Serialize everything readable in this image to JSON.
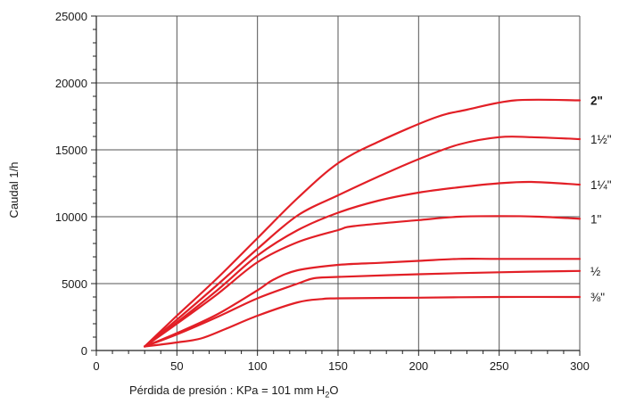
{
  "chart_data": {
    "type": "line",
    "title": "",
    "xlabel": "Pérdida de presión : KPa = 101 mm H",
    "xlabel_sub": "2",
    "xlabel_tail": "O",
    "ylabel": "Caudal 1/h",
    "xlim": [
      0,
      300
    ],
    "ylim": [
      0,
      25000
    ],
    "xticks": [
      "0",
      "50",
      "100",
      "150",
      "200",
      "250",
      "300"
    ],
    "yticks": [
      "0",
      "5000",
      "10000",
      "15000",
      "20000",
      "25000"
    ],
    "grid": true,
    "line_color": "#e21f26",
    "series": [
      {
        "name": "2\"",
        "bold": true,
        "x": [
          30,
          50,
          75,
          100,
          125,
          150,
          175,
          210,
          230,
          260,
          300
        ],
        "y": [
          300,
          2600,
          5400,
          8400,
          11400,
          14000,
          15600,
          17400,
          18000,
          18700,
          18700
        ]
      },
      {
        "name": "1½\"",
        "x": [
          30,
          50,
          75,
          100,
          125,
          150,
          175,
          200,
          225,
          250,
          270,
          300
        ],
        "y": [
          300,
          2300,
          4900,
          7600,
          10100,
          11600,
          13000,
          14300,
          15400,
          15950,
          15950,
          15800
        ]
      },
      {
        "name": "1¼\"",
        "x": [
          30,
          50,
          75,
          100,
          125,
          150,
          175,
          200,
          225,
          250,
          270,
          300
        ],
        "y": [
          300,
          2100,
          4500,
          7100,
          9000,
          10300,
          11200,
          11800,
          12200,
          12500,
          12600,
          12400
        ]
      },
      {
        "name": "1\"",
        "x": [
          30,
          50,
          75,
          100,
          125,
          150,
          160,
          200,
          225,
          250,
          275,
          300
        ],
        "y": [
          300,
          2000,
          4200,
          6600,
          8100,
          9000,
          9300,
          9750,
          10000,
          10050,
          10000,
          9850
        ]
      },
      {
        "name": "",
        "x": [
          30,
          50,
          75,
          100,
          110,
          125,
          150,
          175,
          200,
          225,
          250,
          300
        ],
        "y": [
          300,
          1300,
          2700,
          4500,
          5300,
          6000,
          6400,
          6550,
          6700,
          6850,
          6850,
          6850
        ]
      },
      {
        "name": "½",
        "x": [
          30,
          50,
          75,
          100,
          125,
          135,
          150,
          200,
          250,
          300
        ],
        "y": [
          300,
          1200,
          2500,
          3900,
          5000,
          5400,
          5500,
          5700,
          5850,
          5950
        ]
      },
      {
        "name": "⅜\"",
        "x": [
          30,
          50,
          65,
          80,
          100,
          125,
          140,
          150,
          200,
          250,
          300
        ],
        "y": [
          300,
          600,
          900,
          1600,
          2600,
          3600,
          3850,
          3900,
          3950,
          4000,
          4000
        ]
      }
    ]
  }
}
